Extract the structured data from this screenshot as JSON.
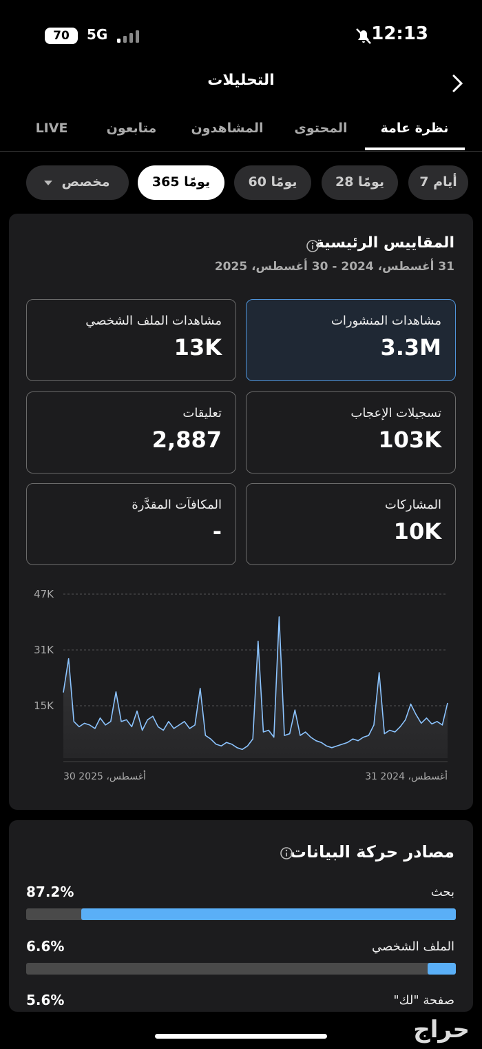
{
  "status_bar": {
    "battery": "70",
    "network": "5G",
    "time": "12:13"
  },
  "header": {
    "title": "التحليلات"
  },
  "tabs": [
    "نظرة عامة",
    "المحتوى",
    "المشاهدون",
    "متابعون",
    "LIVE"
  ],
  "ranges": [
    "7 أيام",
    "28 يومًا",
    "60 يومًا",
    "365 يومًا",
    "مخصص"
  ],
  "key_metrics": {
    "title": "المقاييس الرئيسية",
    "date_range": "31 أغسطس، 2024 - 30 أغسطس، 2025",
    "cards": [
      {
        "label": "مشاهدات المنشورات",
        "value": "3.3M"
      },
      {
        "label": "مشاهدات الملف الشخصي",
        "value": "13K"
      },
      {
        "label": "تسجيلات الإعجاب",
        "value": "103K"
      },
      {
        "label": "تعليقات",
        "value": "2,887"
      },
      {
        "label": "المشاركات",
        "value": "10K"
      },
      {
        "label": "المكافآت المقدَّرة",
        "value": "-"
      }
    ]
  },
  "chart_data": {
    "type": "line",
    "color": "#8cc4ff",
    "categories": [
      "31 أغسطس، 2024",
      null,
      null,
      null,
      null,
      null,
      null,
      null,
      null,
      null,
      null,
      null,
      null,
      null,
      null,
      null,
      null,
      null,
      null,
      null,
      null,
      null,
      null,
      null,
      null,
      null,
      null,
      null,
      null,
      null,
      null,
      null,
      null,
      null,
      null,
      null,
      null,
      null,
      null,
      null,
      null,
      null,
      null,
      null,
      null,
      null,
      null,
      null,
      null,
      null,
      null,
      null,
      null,
      null,
      null,
      null,
      null,
      null,
      null,
      null,
      null,
      null,
      null,
      null,
      null,
      null,
      null,
      null,
      null,
      null,
      null,
      null,
      null,
      "30 أغسطس، 2025"
    ],
    "values": [
      15800,
      9500,
      10500,
      9800,
      11500,
      10000,
      12500,
      15500,
      11000,
      9000,
      7500,
      8000,
      7000,
      24500,
      9500,
      6500,
      6000,
      5000,
      5500,
      4500,
      4000,
      3500,
      3000,
      3500,
      4500,
      5000,
      6000,
      7500,
      6500,
      13800,
      7000,
      6500,
      40500,
      6000,
      8000,
      7500,
      33500,
      5500,
      3500,
      2500,
      3000,
      4000,
      4500,
      3500,
      4000,
      5500,
      6500,
      20000,
      9500,
      8500,
      10500,
      9500,
      8500,
      10500,
      8000,
      9000,
      12000,
      11000,
      8000,
      13500,
      9000,
      11000,
      10500,
      19000,
      10500,
      9500,
      11500,
      8500,
      9500,
      10000,
      9000,
      10500,
      28500,
      18800
    ],
    "ylim": [
      0,
      47000
    ],
    "yticks": [
      {
        "value": 15000,
        "label": "15K"
      },
      {
        "value": 31000,
        "label": "31K"
      },
      {
        "value": 47000,
        "label": "47K"
      }
    ],
    "grid": true
  },
  "traffic_sources": {
    "title": "مصادر حركة البيانات",
    "xlim": [
      0,
      100
    ],
    "items": [
      {
        "label": "بحث",
        "value": 87.2,
        "value_label": "87.2%"
      },
      {
        "label": "الملف الشخصي",
        "value": 6.6,
        "value_label": "6.6%"
      },
      {
        "label": "صفحة \"لك\"",
        "value": 5.6,
        "value_label": "5.6%"
      }
    ]
  },
  "watermark": "حراج"
}
